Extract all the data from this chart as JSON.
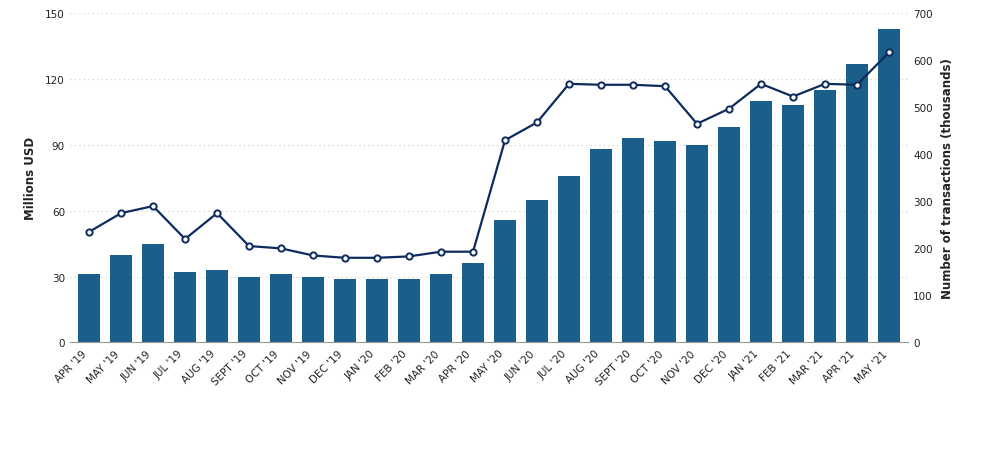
{
  "categories": [
    "APR '19",
    "MAY '19",
    "JUN '19",
    "JUL '19",
    "AUG '19",
    "SEPT '19",
    "OCT '19",
    "NOV '19",
    "DEC '19",
    "JAN '20",
    "FEB '20",
    "MAR '20",
    "APR '20",
    "MAY '20",
    "JUN '20",
    "JUL '20",
    "AUG '20",
    "SEPT '20",
    "OCT '20",
    "NOV '20",
    "DEC '20",
    "JAN '21",
    "FEB '21",
    "MAR '21",
    "APR '21",
    "MAY '21"
  ],
  "bar_values": [
    31,
    40,
    45,
    32,
    33,
    30,
    31,
    30,
    29,
    29,
    29,
    31,
    36,
    56,
    65,
    76,
    88,
    93,
    92,
    90,
    98,
    110,
    108,
    115,
    127,
    143
  ],
  "line_values": [
    235,
    275,
    290,
    220,
    275,
    205,
    200,
    185,
    180,
    180,
    183,
    193,
    193,
    430,
    468,
    550,
    548,
    548,
    545,
    465,
    497,
    550,
    523,
    550,
    548,
    617
  ],
  "bar_color": "#1a5f8a",
  "line_color": "#0d2b5e",
  "ylabel_left": "Millions USD",
  "ylabel_right": "Number of transactions (thousands)",
  "ylim_left": [
    0,
    150
  ],
  "ylim_right": [
    0,
    700
  ],
  "yticks_left": [
    0,
    30,
    60,
    90,
    120,
    150
  ],
  "yticks_right": [
    0,
    100,
    200,
    300,
    400,
    500,
    600,
    700
  ],
  "background_color": "#ffffff",
  "grid_color": "#cccccc",
  "label_fontsize": 8.5,
  "tick_fontsize": 7.5
}
